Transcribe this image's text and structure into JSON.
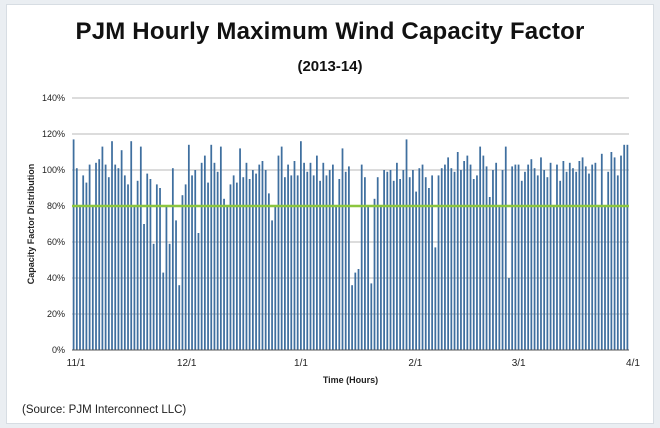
{
  "title": "PJM Hourly Maximum Wind Capacity Factor",
  "subtitle": "(2013-14)",
  "source": "(Source: PJM Interconnect LLC)",
  "colors": {
    "bar": "#3f6f9f",
    "reference_line": "#8cc63f",
    "grid": "#b8b8b8",
    "axis": "#555555"
  },
  "chart_data": {
    "type": "bar",
    "title": "PJM Hourly Maximum Wind Capacity Factor",
    "subtitle": "(2013-14)",
    "xlabel": "Time (Hours)",
    "ylabel": "Capacity Factor Distribution",
    "ylim": [
      0,
      140
    ],
    "yticks": [
      0,
      20,
      40,
      60,
      80,
      100,
      120,
      140
    ],
    "ytick_labels": [
      "0%",
      "20%",
      "40%",
      "60%",
      "80%",
      "100%",
      "120%",
      "140%"
    ],
    "grid": true,
    "x_range": [
      0,
      151
    ],
    "xtick_positions": [
      0,
      30,
      61,
      92,
      120,
      151
    ],
    "xtick_labels": [
      "11/1",
      "12/1",
      "1/1",
      "2/1",
      "3/1",
      "4/1"
    ],
    "reference_line": {
      "value": 80,
      "label": ""
    },
    "unit": "%",
    "values": [
      117,
      101,
      80,
      97,
      93,
      103,
      80,
      104,
      106,
      113,
      103,
      96,
      116,
      103,
      101,
      111,
      97,
      92,
      116,
      80,
      94,
      113,
      70,
      98,
      95,
      59,
      92,
      90,
      43,
      80,
      59,
      101,
      72,
      36,
      86,
      92,
      114,
      97,
      100,
      65,
      104,
      108,
      93,
      114,
      104,
      99,
      113,
      84,
      80,
      92,
      97,
      93,
      112,
      96,
      104,
      95,
      100,
      98,
      103,
      105,
      100,
      87,
      72,
      80,
      108,
      113,
      96,
      103,
      97,
      105,
      97,
      116,
      104,
      99,
      104,
      97,
      108,
      94,
      104,
      97,
      100,
      103,
      80,
      95,
      112,
      99,
      102,
      36,
      43,
      45,
      103,
      96,
      80,
      37,
      84,
      96,
      80,
      100,
      99,
      100,
      94,
      104,
      95,
      100,
      117,
      96,
      100,
      88,
      101,
      103,
      96,
      90,
      97,
      57,
      97,
      101,
      103,
      107,
      101,
      99,
      110,
      100,
      105,
      108,
      103,
      95,
      97,
      113,
      108,
      102,
      85,
      100,
      104,
      80,
      100,
      113,
      40,
      102,
      103,
      103,
      94,
      99,
      103,
      106,
      101,
      97,
      107,
      100,
      96,
      104,
      80,
      103,
      94,
      105,
      99,
      104,
      101,
      99,
      105,
      107,
      102,
      98,
      103,
      104,
      80,
      109,
      80,
      99,
      110,
      107,
      97,
      108,
      114,
      114
    ]
  }
}
